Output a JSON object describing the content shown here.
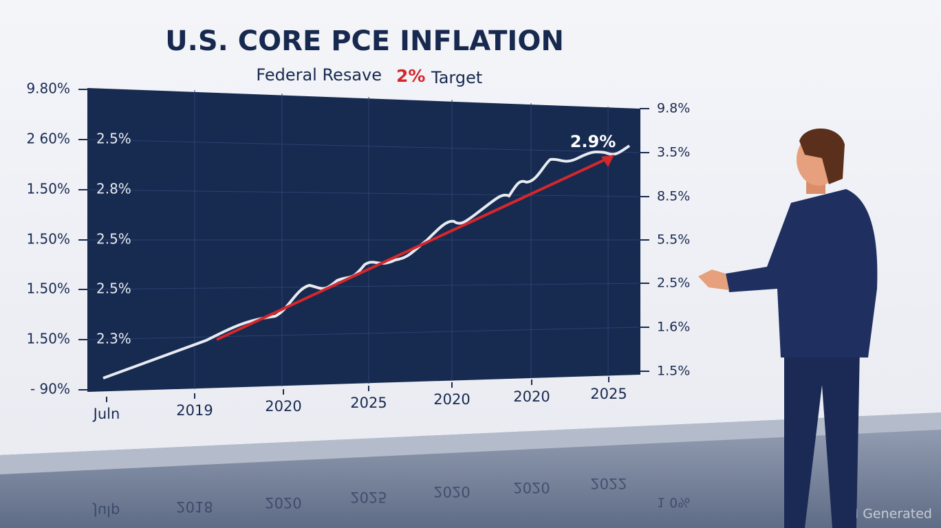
{
  "header": {
    "title": "U.S. CORE PCE INFLATION",
    "subtitle": {
      "text": "Federal Resave",
      "highlight": "2%",
      "suffix": "Target"
    }
  },
  "chart": {
    "left_labels": [
      "9.80%",
      "2 60%",
      "1.50%",
      "1.50%",
      "1.50%",
      "1.50%",
      "- 90%"
    ],
    "inner_labels": [
      "2.5%",
      "2.8%",
      "2.5%",
      "2.5%",
      "2.3%"
    ],
    "right_labels": [
      "9.8%",
      "3.5%",
      "8.5%",
      "5.5%",
      "2.5%",
      "1.6%",
      "1.5%"
    ],
    "x_labels": [
      "Juln",
      "2019",
      "2020",
      "2025",
      "2020",
      "2020",
      "2025"
    ],
    "annotation": "2.9%"
  },
  "reflection": {
    "x_labels": [
      "Julp",
      "2018",
      "2020",
      "2025",
      "2020",
      "2020",
      "2022"
    ],
    "right_label": "1 0%"
  },
  "watermark": "AI Generated"
}
